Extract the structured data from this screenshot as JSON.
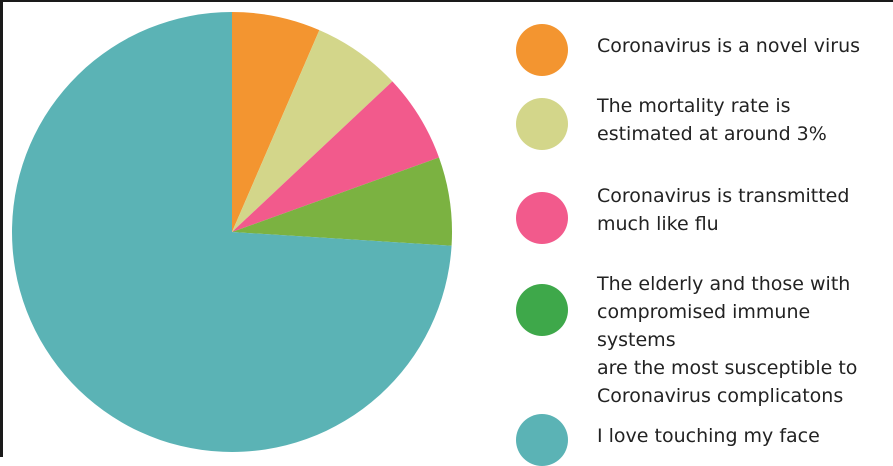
{
  "chart_data": {
    "type": "pie",
    "start_angle_deg": 0,
    "direction": "clockwise",
    "slices": [
      {
        "label": "Coronavirus is a novel virus",
        "value": 6.5,
        "color": "#f39530"
      },
      {
        "label": "The mortality rate is\nestimated at around 3%",
        "value": 6.5,
        "color": "#d3d68a"
      },
      {
        "label": "Coronavirus is transmitted\nmuch like flu",
        "value": 6.5,
        "color": "#f25a8c"
      },
      {
        "label": "The elderly and those with\ncompromised immune systems\nare the most susceptible to\nCoronavirus complicatons",
        "value": 6.5,
        "color": "#7bb241"
      },
      {
        "label": "I  love touching my face",
        "value": 74.0,
        "color": "#5bb3b5"
      }
    ],
    "legend": {
      "placement": "right",
      "items": [
        {
          "label": "Coronavirus is a novel virus",
          "color": "#f39530"
        },
        {
          "label": "The mortality rate is\nestimated at around 3%",
          "color": "#d3d68a"
        },
        {
          "label": "Coronavirus is transmitted\nmuch like flu",
          "color": "#f25a8c"
        },
        {
          "label": "The elderly and those with\ncompromised immune systems\nare the most susceptible to\nCoronavirus complicatons",
          "color": "#3ea84a"
        },
        {
          "label": "I  love touching my face",
          "color": "#5bb3b5"
        }
      ]
    }
  }
}
